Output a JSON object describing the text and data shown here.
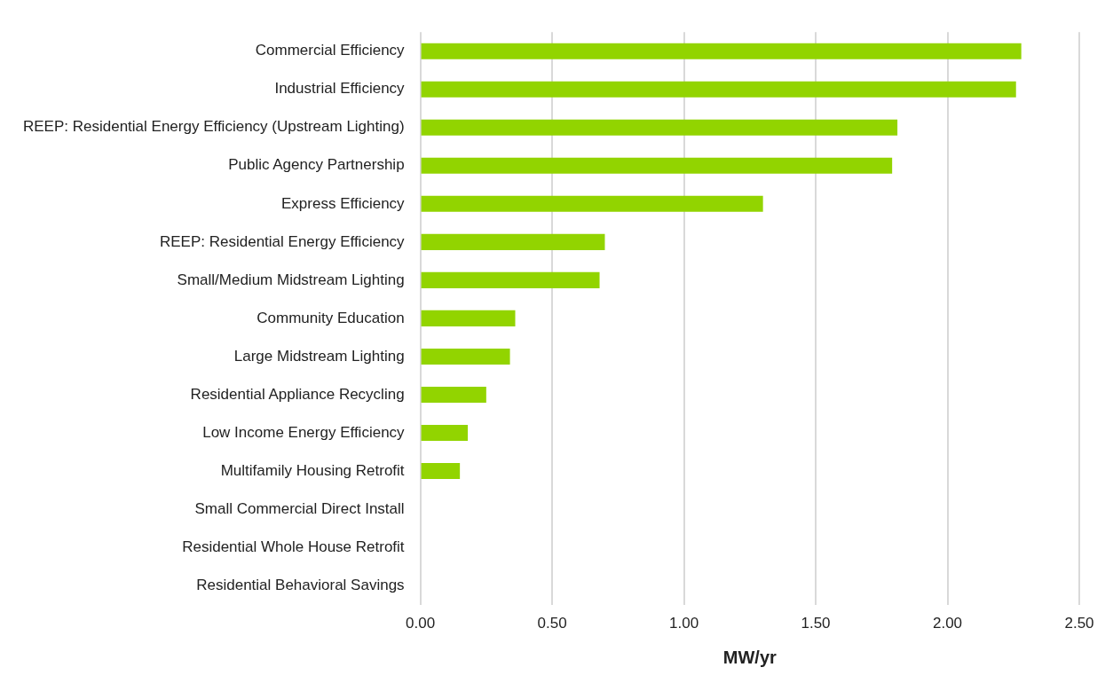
{
  "chart_data": {
    "type": "bar",
    "orientation": "horizontal",
    "categories": [
      "Commercial Efficiency",
      "Industrial Efficiency",
      "REEP: Residential Energy Efficiency (Upstream Lighting)",
      "Public Agency Partnership",
      "Express Efficiency",
      "REEP: Residential Energy Efficiency",
      "Small/Medium Midstream Lighting",
      "Community Education",
      "Large Midstream Lighting",
      "Residential Appliance Recycling",
      "Low Income Energy Efficiency",
      "Multifamily Housing Retrofit",
      "Small Commercial Direct Install",
      "Residential Whole House Retrofit",
      "Residential Behavioral Savings"
    ],
    "values": [
      2.28,
      2.26,
      1.81,
      1.79,
      1.3,
      0.7,
      0.68,
      0.36,
      0.34,
      0.25,
      0.18,
      0.15,
      0,
      0,
      0
    ],
    "color": "#92d400",
    "xlabel": "MW/yr",
    "xlim": [
      0,
      2.5
    ],
    "xticks": [
      {
        "value": 0,
        "label": "0.00"
      },
      {
        "value": 0.5,
        "label": "0.50"
      },
      {
        "value": 1,
        "label": "1.00"
      },
      {
        "value": 1.5,
        "label": "1.50"
      },
      {
        "value": 2,
        "label": "2.00"
      },
      {
        "value": 2.5,
        "label": "2.50"
      }
    ],
    "grid": "x",
    "legend": false
  }
}
